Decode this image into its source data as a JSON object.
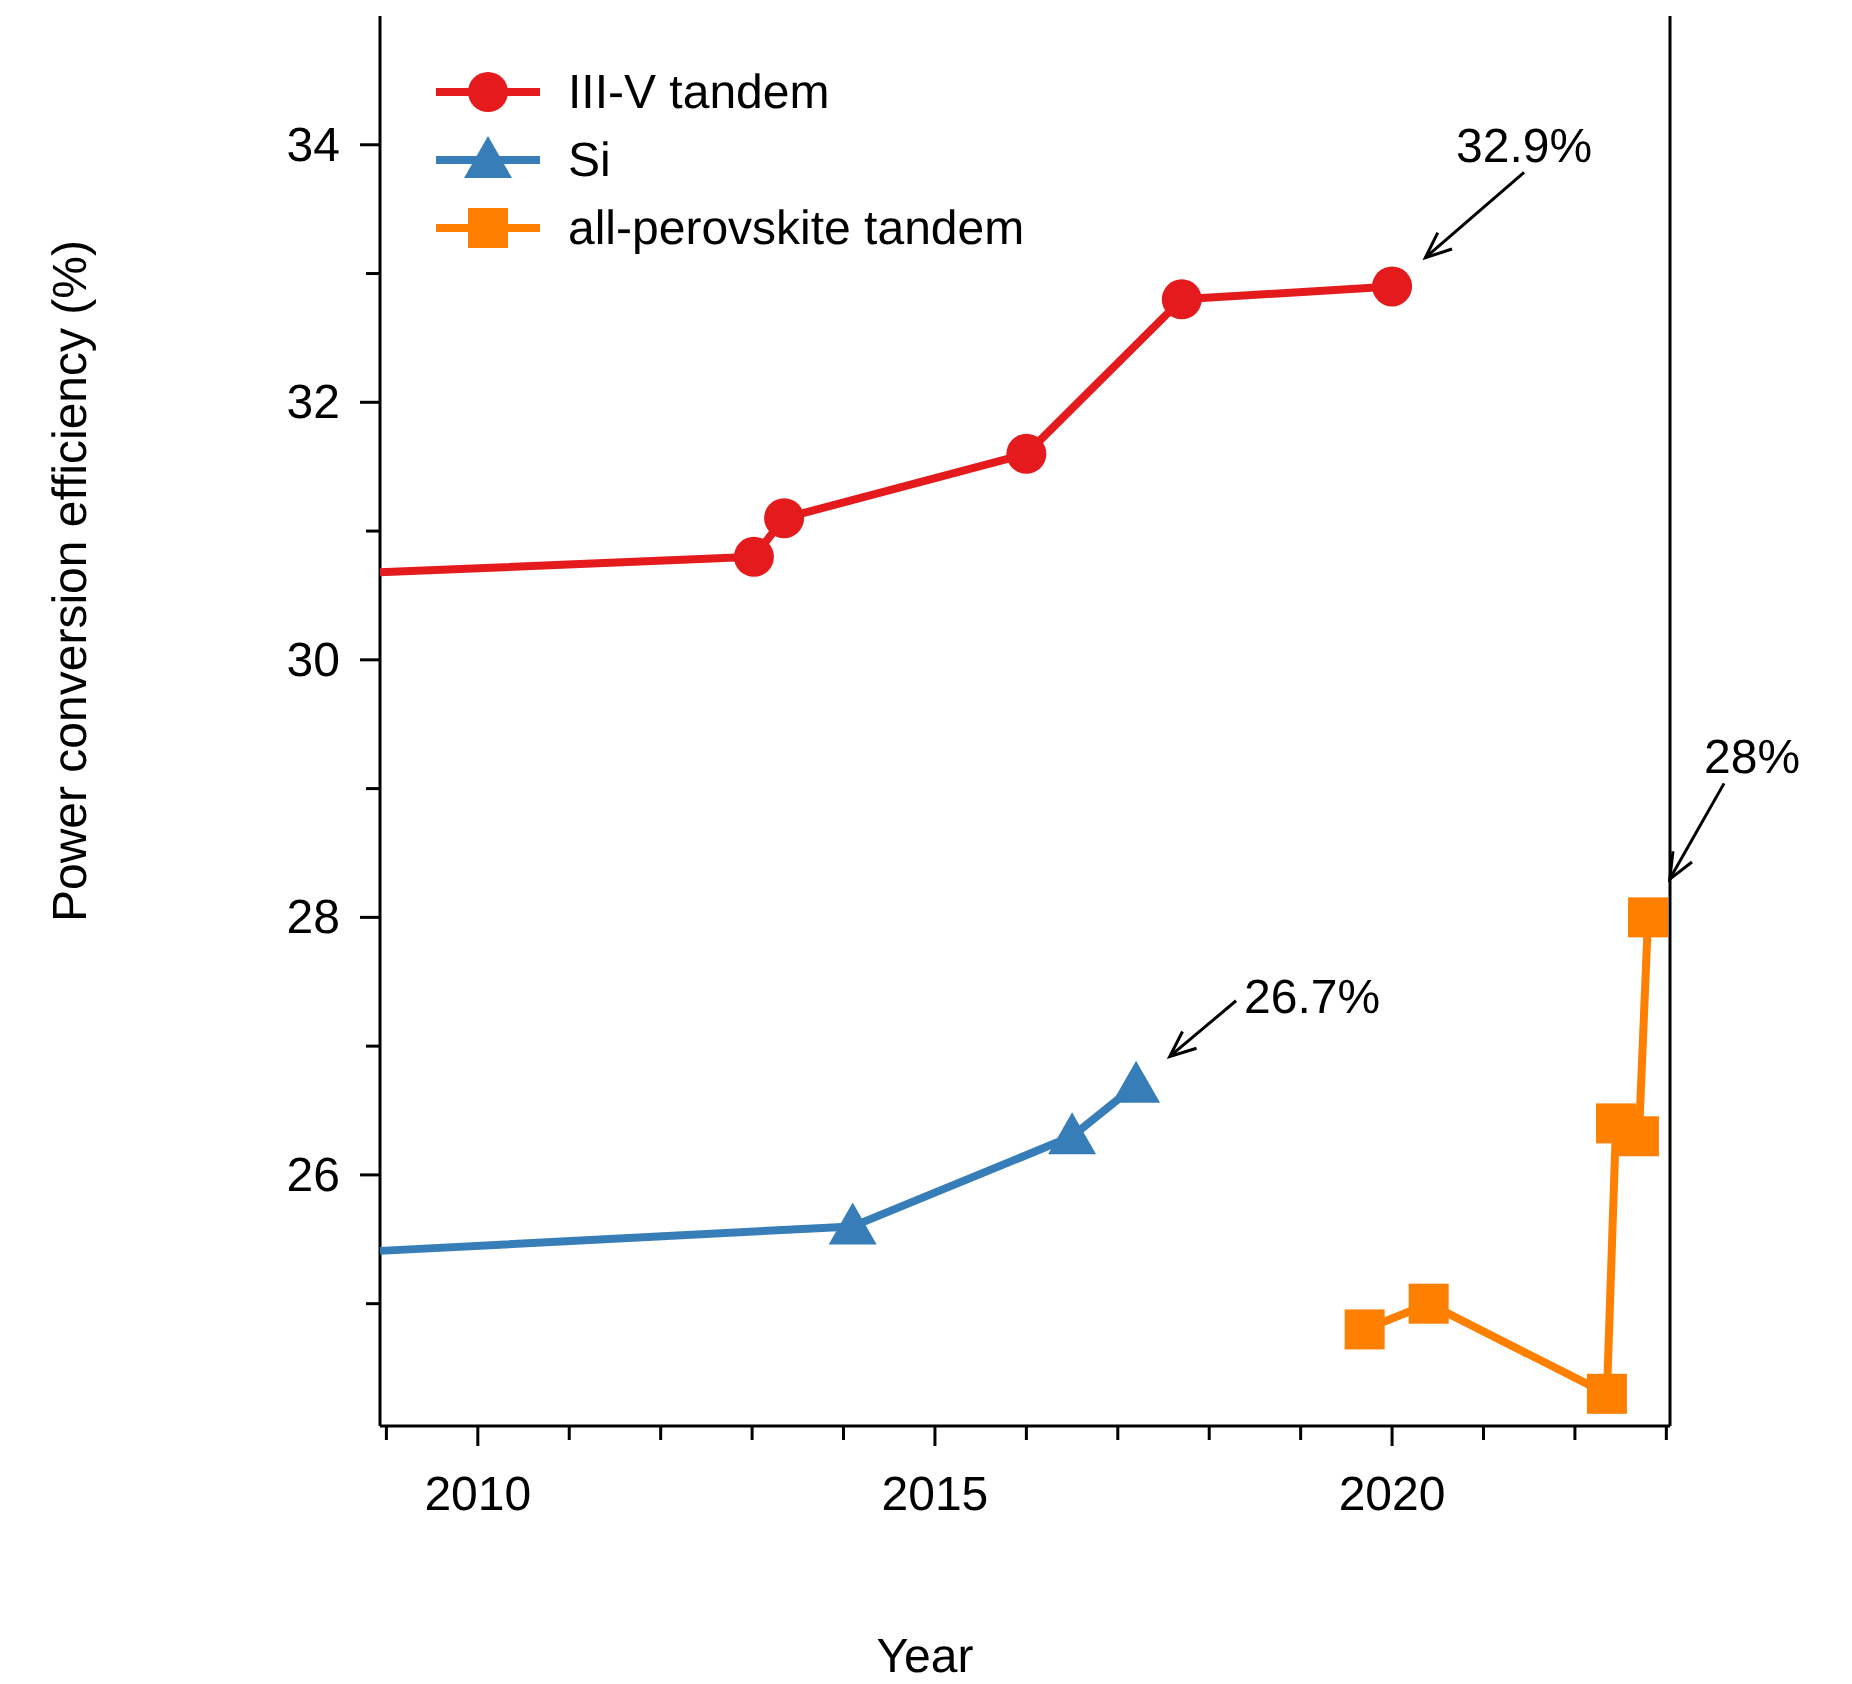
{
  "chart_data": {
    "type": "line",
    "xlabel": "Year",
    "ylabel": "Power conversion efficiency (%)",
    "xlim": [
      2008.93,
      2023.04
    ],
    "xticks": [
      {
        "value": 2009,
        "label": null
      },
      2010,
      {
        "value": 2011,
        "label": null
      },
      {
        "value": 2012,
        "label": null
      },
      {
        "value": 2013,
        "label": null
      },
      {
        "value": 2014,
        "label": null
      },
      2015,
      {
        "value": 2016,
        "label": null
      },
      {
        "value": 2017,
        "label": null
      },
      {
        "value": 2018,
        "label": null
      },
      {
        "value": 2019,
        "label": null
      },
      2020,
      {
        "value": 2021,
        "label": null
      },
      {
        "value": 2022,
        "label": null
      },
      {
        "value": 2023,
        "label": null
      }
    ],
    "ylim": [
      24.05,
      35
    ],
    "yticks": [
      {
        "value": 25,
        "label": null
      },
      26,
      {
        "value": 27,
        "label": null
      },
      28,
      {
        "value": 29,
        "label": null
      },
      30,
      {
        "value": 31,
        "label": null
      },
      32,
      {
        "value": 33,
        "label": null
      },
      34
    ],
    "grid": false,
    "legend": "top left",
    "line_style": "solid",
    "series": [
      {
        "name": "III-V tandem",
        "color": "#e41a1c",
        "marker": "circle",
        "x": [
          2008.93,
          2013.02,
          2013.35,
          2016.0,
          2017.7,
          2020.0
        ],
        "values": [
          30.68,
          30.8,
          31.1,
          31.6,
          32.8,
          32.9
        ]
      },
      {
        "name": "Si",
        "color": "#377eb8",
        "marker": "triangle",
        "x": [
          2008.93,
          2014.1,
          2016.5,
          2017.2
        ],
        "values": [
          25.41,
          25.6,
          26.3,
          26.7
        ]
      },
      {
        "name": "all-perovskite tandem",
        "color": "#ff7f00",
        "marker": "square",
        "x": [
          2019.7,
          2020.4,
          2022.35,
          2022.45,
          2022.7,
          2022.8
        ],
        "values": [
          24.8,
          25.0,
          24.3,
          26.4,
          26.3,
          28.0
        ]
      }
    ],
    "annotations": [
      {
        "text": "32.9%",
        "x": 2020.0,
        "y": 32.9
      },
      {
        "text": "26.7%",
        "x": 2017.2,
        "y": 26.7
      },
      {
        "text": "28%",
        "x": 2022.8,
        "y": 28.0
      }
    ]
  }
}
